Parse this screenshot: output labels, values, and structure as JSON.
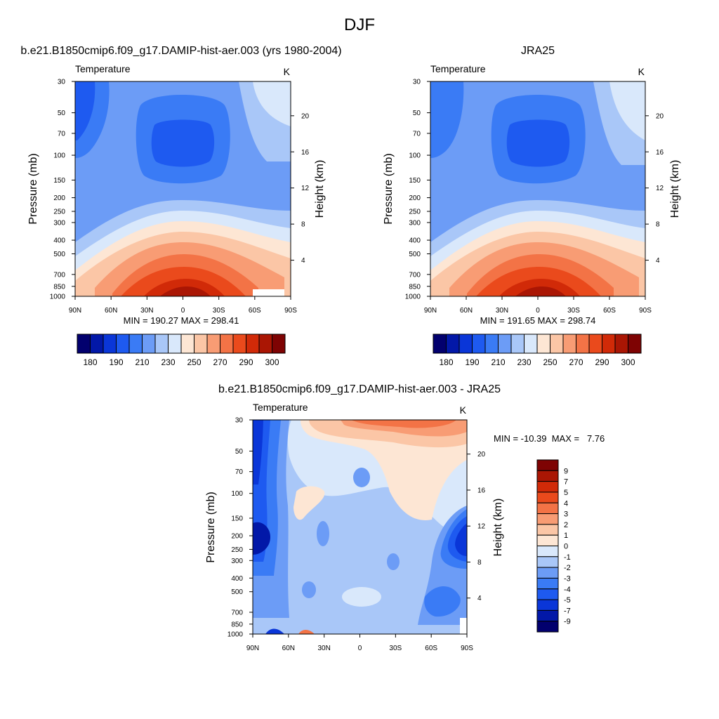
{
  "figure": {
    "title": "DJF"
  },
  "colors": {
    "temperature_scale": [
      "#02006e",
      "#0218a8",
      "#0a36d8",
      "#1e5af0",
      "#3a7bf5",
      "#6c9cf6",
      "#a9c7f8",
      "#d9e8fb",
      "#fde6d4",
      "#fbc6a6",
      "#f89c74",
      "#f37346",
      "#ea4a1c",
      "#d12a08",
      "#aa1604",
      "#7e0303"
    ],
    "difference_scale": [
      "#02006e",
      "#0218a8",
      "#0a36d8",
      "#1e5af0",
      "#3a7bf5",
      "#6c9cf6",
      "#a9c7f8",
      "#d9e8fb",
      "#fde6d4",
      "#fbc6a6",
      "#f89c74",
      "#f37346",
      "#ea4a1c",
      "#d12a08",
      "#aa1604",
      "#7e0303"
    ]
  },
  "chart_data": [
    {
      "type": "heatmap",
      "panel": "model",
      "title": "b.e21.B1850cmip6.f09_g17.DAMIP-hist-aer.003 (yrs 1980-2004)",
      "left_string": "Temperature",
      "right_string": "K",
      "ylabel": "Pressure (mb)",
      "ylabel_right": "Height (km)",
      "x_ticks": [
        "90N",
        "60N",
        "30N",
        "0",
        "30S",
        "60S",
        "90S"
      ],
      "y_ticks": [
        "30",
        "50",
        "70",
        "100",
        "150",
        "200",
        "250",
        "300",
        "400",
        "500",
        "700",
        "850",
        "1000"
      ],
      "height_ticks": [
        "4",
        "8",
        "12",
        "16",
        "20"
      ],
      "stats": "MIN = 190.27  MAX = 298.41",
      "min": 190.27,
      "max": 298.41,
      "colorbar_labels": [
        "180",
        "190",
        "210",
        "230",
        "250",
        "270",
        "290",
        "300"
      ]
    },
    {
      "type": "heatmap",
      "panel": "obs",
      "title": "JRA25",
      "left_string": "Temperature",
      "right_string": "K",
      "ylabel": "Pressure (mb)",
      "ylabel_right": "Height (km)",
      "x_ticks": [
        "90N",
        "60N",
        "30N",
        "0",
        "30S",
        "60S",
        "90S"
      ],
      "y_ticks": [
        "30",
        "50",
        "70",
        "100",
        "150",
        "200",
        "250",
        "300",
        "400",
        "500",
        "700",
        "850",
        "1000"
      ],
      "height_ticks": [
        "4",
        "8",
        "12",
        "16",
        "20"
      ],
      "stats": "MIN = 191.65  MAX = 298.74",
      "min": 191.65,
      "max": 298.74,
      "colorbar_labels": [
        "180",
        "190",
        "210",
        "230",
        "250",
        "270",
        "290",
        "300"
      ]
    },
    {
      "type": "heatmap",
      "panel": "difference",
      "title": "b.e21.B1850cmip6.f09_g17.DAMIP-hist-aer.003 - JRA25",
      "left_string": "Temperature",
      "right_string": "K",
      "ylabel": "Pressure (mb)",
      "ylabel_right": "Height (km)",
      "x_ticks": [
        "90N",
        "60N",
        "30N",
        "0",
        "30S",
        "60S",
        "90S"
      ],
      "y_ticks": [
        "30",
        "50",
        "70",
        "100",
        "150",
        "200",
        "250",
        "300",
        "400",
        "500",
        "700",
        "850",
        "1000"
      ],
      "height_ticks": [
        "4",
        "8",
        "12",
        "16",
        "20"
      ],
      "stats": "MIN = -10.39  MAX =   7.76",
      "min": -10.39,
      "max": 7.76,
      "colorbar_labels": [
        "9",
        "7",
        "5",
        "4",
        "3",
        "2",
        "1",
        "0",
        "-1",
        "-2",
        "-3",
        "-4",
        "-5",
        "-7",
        "-9"
      ]
    }
  ]
}
